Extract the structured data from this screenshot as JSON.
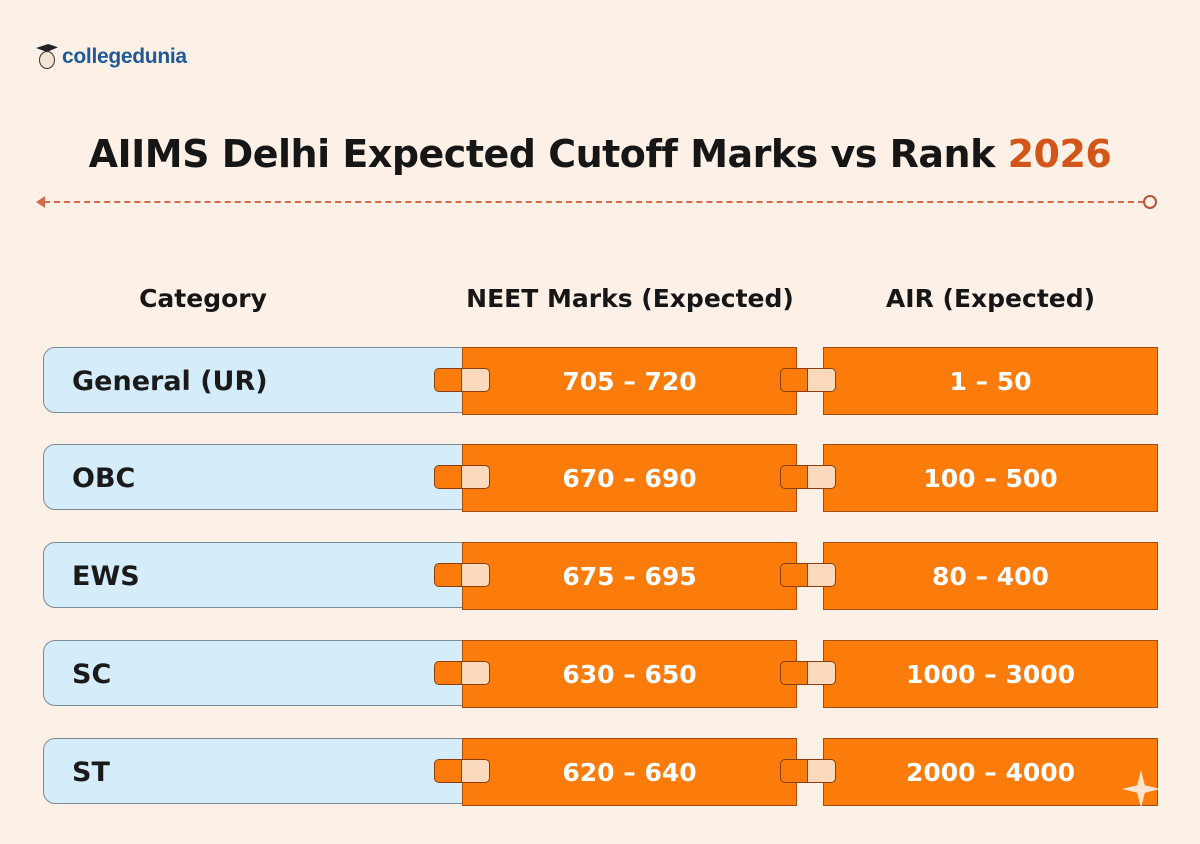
{
  "brand": {
    "name": "collegedunia"
  },
  "title": {
    "main": "AIIMS Delhi Expected Cutoff Marks vs Rank",
    "year": "2026"
  },
  "headers": {
    "category": "Category",
    "marks": "NEET Marks (Expected)",
    "air": "AIR (Expected)"
  },
  "rows": [
    {
      "category": "General (UR)",
      "marks": "705 – 720",
      "air": "1 – 50"
    },
    {
      "category": "OBC",
      "marks": "670 – 690",
      "air": "100 – 500"
    },
    {
      "category": "EWS",
      "marks": "675 – 695",
      "air": "80 – 400"
    },
    {
      "category": "SC",
      "marks": "630 – 650",
      "air": "1000 – 3000"
    },
    {
      "category": "ST",
      "marks": "620 – 640",
      "air": "2000 – 4000"
    }
  ],
  "colors": {
    "accent": "#fb7b0b",
    "category_bg": "#d5ecfb",
    "background": "#fdf1e7",
    "year": "#d2561a"
  }
}
